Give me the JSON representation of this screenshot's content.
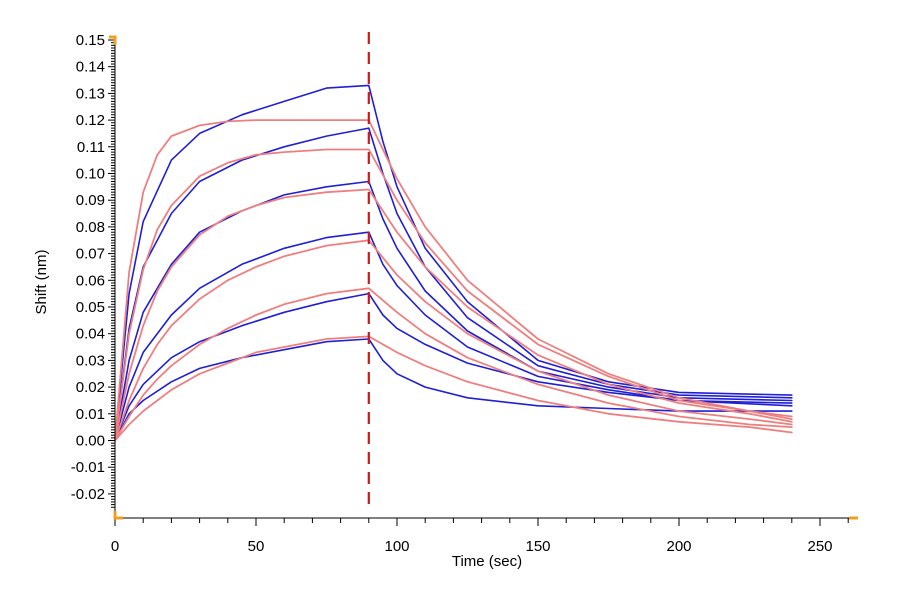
{
  "chart_data": {
    "type": "line",
    "title": "",
    "xlabel": "Time (sec)",
    "ylabel": "Shift (nm)",
    "xlim": [
      0,
      262
    ],
    "ylim": [
      -0.025,
      0.152
    ],
    "x_ticks": [
      0,
      50,
      100,
      150,
      200,
      250
    ],
    "x_tick_labels": [
      "0",
      "50",
      "100",
      "150",
      "200",
      "250"
    ],
    "y_ticks": [
      0.15,
      0.14,
      0.13,
      0.12,
      0.11,
      0.1,
      0.09,
      0.08,
      0.07,
      0.06,
      0.05,
      0.04,
      0.03,
      0.02,
      0.01,
      0.0,
      -0.01,
      -0.02
    ],
    "y_tick_labels": [
      "0.15",
      "0.14",
      "0.13",
      "0.12",
      "0.11",
      "0.10",
      "0.09",
      "0.08",
      "0.07",
      "0.06",
      "0.05",
      "0.04",
      "0.03",
      "0.02",
      "0.01",
      "0.00",
      "-0.01",
      "-0.02"
    ],
    "association_end_marker_x": 90,
    "grid": false,
    "legend": "none",
    "colors": {
      "measured": "#1f1fd6",
      "fit": "#ef7f7f",
      "marker": "#cc1a1a",
      "axis_handle": "#f0a020"
    },
    "series": [
      {
        "kind": "measured",
        "x": [
          0,
          5,
          10,
          20,
          30,
          45,
          60,
          75,
          90,
          95,
          100,
          110,
          125,
          150,
          175,
          200,
          240
        ],
        "y": [
          0.0,
          0.055,
          0.082,
          0.105,
          0.115,
          0.122,
          0.127,
          0.132,
          0.133,
          0.112,
          0.095,
          0.072,
          0.052,
          0.03,
          0.022,
          0.018,
          0.017
        ]
      },
      {
        "kind": "measured",
        "x": [
          0,
          5,
          10,
          20,
          30,
          45,
          60,
          75,
          90,
          95,
          100,
          110,
          125,
          150,
          175,
          200,
          240
        ],
        "y": [
          0.0,
          0.042,
          0.065,
          0.085,
          0.097,
          0.105,
          0.11,
          0.114,
          0.117,
          0.1,
          0.085,
          0.065,
          0.046,
          0.028,
          0.021,
          0.017,
          0.016
        ]
      },
      {
        "kind": "measured",
        "x": [
          0,
          5,
          10,
          20,
          30,
          45,
          60,
          75,
          90,
          95,
          100,
          110,
          125,
          150,
          175,
          200,
          240
        ],
        "y": [
          0.0,
          0.03,
          0.048,
          0.066,
          0.078,
          0.086,
          0.092,
          0.095,
          0.097,
          0.083,
          0.072,
          0.056,
          0.041,
          0.026,
          0.02,
          0.016,
          0.015
        ]
      },
      {
        "kind": "measured",
        "x": [
          0,
          5,
          10,
          20,
          30,
          45,
          60,
          75,
          90,
          95,
          100,
          110,
          125,
          150,
          175,
          200,
          240
        ],
        "y": [
          0.0,
          0.02,
          0.033,
          0.047,
          0.057,
          0.066,
          0.072,
          0.076,
          0.078,
          0.066,
          0.058,
          0.047,
          0.035,
          0.024,
          0.019,
          0.015,
          0.014
        ]
      },
      {
        "kind": "measured",
        "x": [
          0,
          5,
          10,
          20,
          30,
          45,
          60,
          75,
          90,
          95,
          100,
          110,
          125,
          150,
          175,
          200,
          240
        ],
        "y": [
          0.0,
          0.013,
          0.021,
          0.031,
          0.037,
          0.043,
          0.048,
          0.052,
          0.055,
          0.047,
          0.042,
          0.036,
          0.029,
          0.022,
          0.018,
          0.015,
          0.013
        ]
      },
      {
        "kind": "measured",
        "x": [
          0,
          5,
          10,
          20,
          30,
          45,
          60,
          75,
          90,
          95,
          100,
          110,
          125,
          150,
          175,
          200,
          240
        ],
        "y": [
          0.0,
          0.01,
          0.015,
          0.022,
          0.027,
          0.031,
          0.034,
          0.037,
          0.038,
          0.03,
          0.025,
          0.02,
          0.016,
          0.013,
          0.012,
          0.011,
          0.011
        ]
      },
      {
        "kind": "fit",
        "x": [
          0,
          5,
          10,
          15,
          20,
          30,
          40,
          50,
          60,
          75,
          90,
          100,
          110,
          125,
          150,
          175,
          200,
          225,
          240
        ],
        "y": [
          0.0,
          0.063,
          0.093,
          0.107,
          0.114,
          0.118,
          0.1195,
          0.12,
          0.12,
          0.12,
          0.12,
          0.098,
          0.08,
          0.06,
          0.038,
          0.025,
          0.016,
          0.011,
          0.009
        ]
      },
      {
        "kind": "fit",
        "x": [
          0,
          5,
          10,
          15,
          20,
          30,
          40,
          50,
          60,
          75,
          90,
          100,
          110,
          125,
          150,
          175,
          200,
          225,
          240
        ],
        "y": [
          0.0,
          0.04,
          0.064,
          0.079,
          0.088,
          0.099,
          0.104,
          0.107,
          0.108,
          0.109,
          0.109,
          0.09,
          0.074,
          0.056,
          0.036,
          0.024,
          0.015,
          0.011,
          0.008
        ]
      },
      {
        "kind": "fit",
        "x": [
          0,
          5,
          10,
          15,
          20,
          30,
          40,
          50,
          60,
          75,
          90,
          100,
          110,
          125,
          150,
          175,
          200,
          225,
          240
        ],
        "y": [
          0.0,
          0.025,
          0.043,
          0.056,
          0.065,
          0.077,
          0.084,
          0.088,
          0.091,
          0.093,
          0.094,
          0.078,
          0.065,
          0.05,
          0.032,
          0.021,
          0.014,
          0.01,
          0.007
        ]
      },
      {
        "kind": "fit",
        "x": [
          0,
          5,
          10,
          15,
          20,
          30,
          40,
          50,
          60,
          75,
          90,
          100,
          110,
          125,
          150,
          175,
          200,
          225,
          240
        ],
        "y": [
          0.0,
          0.015,
          0.027,
          0.036,
          0.043,
          0.053,
          0.06,
          0.065,
          0.069,
          0.073,
          0.075,
          0.062,
          0.052,
          0.04,
          0.026,
          0.017,
          0.011,
          0.008,
          0.006
        ]
      },
      {
        "kind": "fit",
        "x": [
          0,
          5,
          10,
          15,
          20,
          30,
          40,
          50,
          60,
          75,
          90,
          100,
          110,
          125,
          150,
          175,
          200,
          225,
          240
        ],
        "y": [
          0.0,
          0.009,
          0.017,
          0.023,
          0.028,
          0.036,
          0.042,
          0.047,
          0.051,
          0.055,
          0.057,
          0.048,
          0.04,
          0.031,
          0.021,
          0.014,
          0.009,
          0.006,
          0.005
        ]
      },
      {
        "kind": "fit",
        "x": [
          0,
          5,
          10,
          15,
          20,
          30,
          40,
          50,
          60,
          75,
          90,
          100,
          110,
          125,
          150,
          175,
          200,
          225,
          240
        ],
        "y": [
          0.0,
          0.006,
          0.011,
          0.015,
          0.019,
          0.025,
          0.029,
          0.033,
          0.035,
          0.038,
          0.039,
          0.033,
          0.028,
          0.022,
          0.015,
          0.01,
          0.007,
          0.005,
          0.003
        ]
      }
    ]
  }
}
